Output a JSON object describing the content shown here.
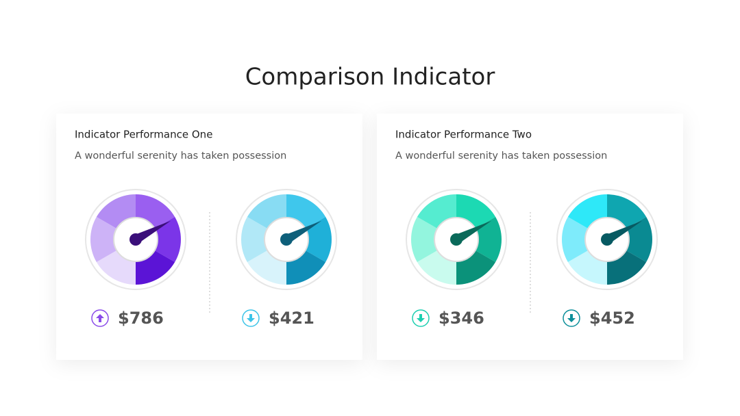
{
  "title": "Comparison Indicator",
  "panels": [
    {
      "title": "Indicator Performance One",
      "subtitle": "A wonderful serenity has taken possession",
      "gauges": [
        {
          "value": "$786",
          "trend": "up",
          "accent": "#8a4be9",
          "needle": "#3b0f7a",
          "colors": [
            "#e6dafb",
            "#cdb3f7",
            "#b38cf3",
            "#9a5ff0",
            "#7b35e8",
            "#5b14d6"
          ]
        },
        {
          "value": "$421",
          "trend": "down",
          "accent": "#3cc4e8",
          "needle": "#0e5f7a",
          "colors": [
            "#d8f3fb",
            "#b1e8f7",
            "#88dcf3",
            "#3fc7ec",
            "#1fb0d8",
            "#108fb8"
          ]
        }
      ]
    },
    {
      "title": "Indicator Performance Two",
      "subtitle": "A wonderful serenity has taken possession",
      "gauges": [
        {
          "value": "$346",
          "trend": "down",
          "accent": "#1ccfb0",
          "needle": "#0a6a5a",
          "colors": [
            "#c9fbee",
            "#93f5de",
            "#55ecd0",
            "#1cd9b3",
            "#10b394",
            "#0b927a"
          ]
        },
        {
          "value": "$452",
          "trend": "down",
          "accent": "#0c8f9a",
          "needle": "#075a62",
          "colors": [
            "#c6f7fd",
            "#7eebfb",
            "#2ee8f8",
            "#0fa6b0",
            "#0a8a92",
            "#08707a"
          ]
        }
      ]
    }
  ]
}
